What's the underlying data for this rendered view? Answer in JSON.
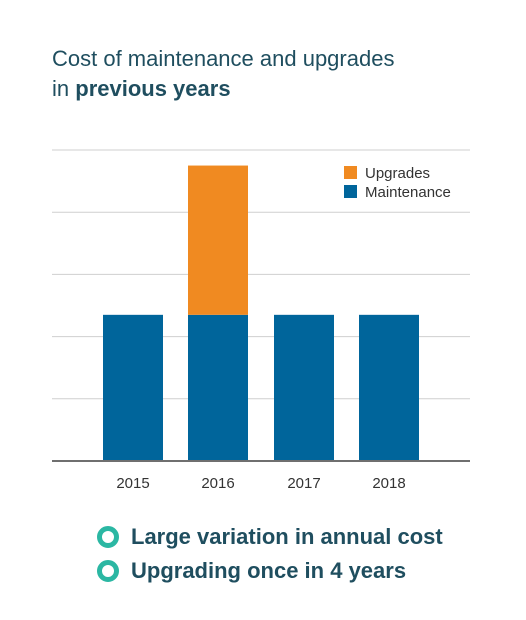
{
  "title": {
    "line1": "Cost of maintenance and upgrades",
    "line2_prefix": "in",
    "line2_bold": "previous years"
  },
  "colors": {
    "maintenance": "#00659b",
    "upgrades": "#f08a21",
    "accent": "#2bb7a3",
    "text": "#1f4e5f",
    "grid": "#cfcfcf",
    "axis": "#6f6f6f"
  },
  "chart_data": {
    "type": "bar",
    "stacked": true,
    "categories": [
      "2015",
      "2016",
      "2017",
      "2018"
    ],
    "series": [
      {
        "name": "Maintenance",
        "values": [
          2.35,
          2.35,
          2.35,
          2.35
        ]
      },
      {
        "name": "Upgrades",
        "values": [
          0,
          2.4,
          0,
          0
        ]
      }
    ],
    "ylim": [
      0,
      5
    ],
    "grid": true,
    "legend": [
      "Upgrades",
      "Maintenance"
    ],
    "legend_position": "top-right",
    "xlabel": "",
    "ylabel": ""
  },
  "bullets": [
    {
      "text": "Large variation in annual cost"
    },
    {
      "text": "Upgrading once in 4 years"
    }
  ]
}
